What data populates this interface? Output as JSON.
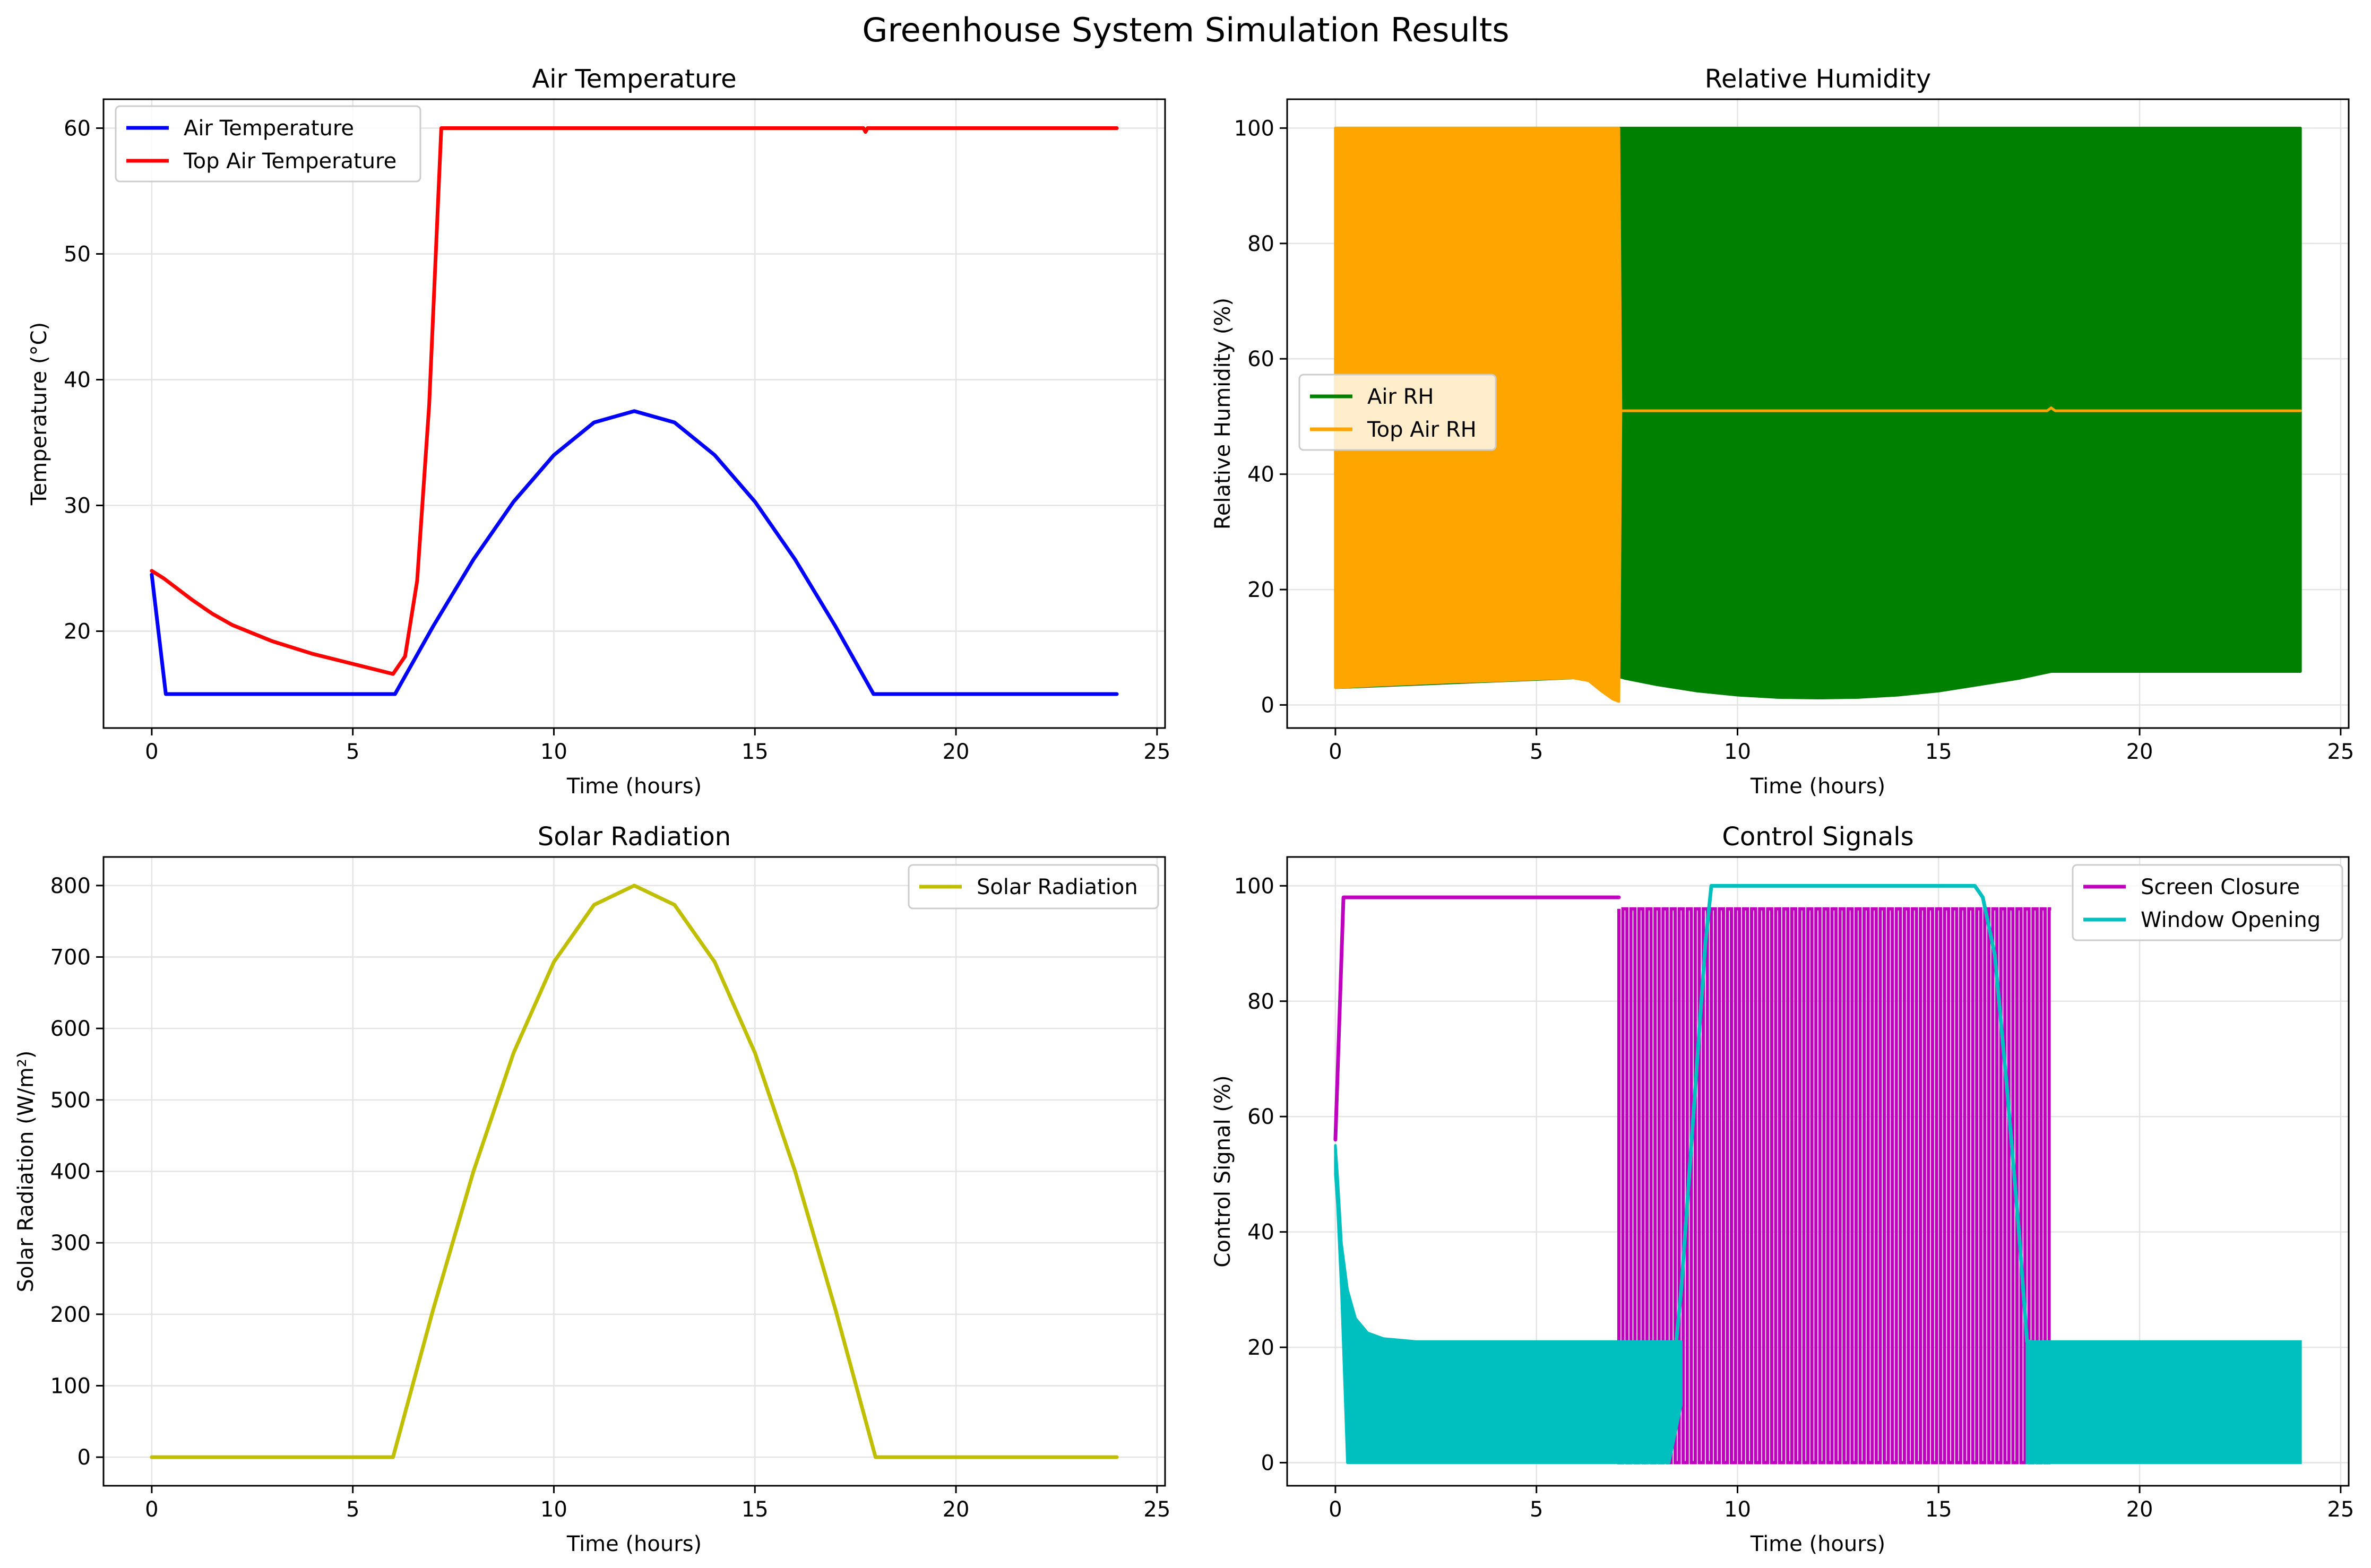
{
  "figure": {
    "title": "Greenhouse System Simulation Results"
  },
  "chart_data": [
    {
      "type": "line",
      "title": "Air Temperature",
      "xlabel": "Time (hours)",
      "ylabel": "Temperature (°C)",
      "xlim": [
        -1.2,
        25.2
      ],
      "ylim": [
        12.3,
        62.3
      ],
      "xticks": [
        0,
        5,
        10,
        15,
        20,
        25
      ],
      "yticks": [
        20,
        30,
        40,
        50,
        60
      ],
      "grid": true,
      "legend": "upper left",
      "series": [
        {
          "name": "Air Temperature",
          "color": "#0000ff",
          "x": [
            0,
            0.35,
            1,
            2,
            3,
            4,
            5,
            6.05,
            7,
            8,
            9,
            10,
            11,
            12,
            13,
            14,
            15,
            16,
            17,
            17.95,
            18.5,
            20,
            22,
            24
          ],
          "y": [
            24.5,
            15,
            15,
            15,
            15,
            15,
            15,
            15,
            20.4,
            25.7,
            30.3,
            34,
            36.6,
            37.5,
            36.6,
            34,
            30.3,
            25.7,
            20.4,
            15,
            15,
            15,
            15,
            15
          ]
        },
        {
          "name": "Top Air Temperature",
          "color": "#ff0000",
          "x": [
            0,
            0.3,
            1,
            1.5,
            2,
            3,
            4,
            5,
            6,
            6.3,
            6.6,
            6.9,
            7.2,
            8,
            10,
            12,
            14,
            16,
            17.7,
            17.75,
            17.8,
            20,
            22,
            24
          ],
          "y": [
            24.8,
            24.2,
            22.5,
            21.4,
            20.5,
            19.2,
            18.2,
            17.4,
            16.6,
            18,
            24,
            38,
            60,
            60,
            60,
            60,
            60,
            60,
            60,
            59.7,
            60,
            60,
            60,
            60
          ]
        }
      ]
    },
    {
      "type": "area",
      "title": "Relative Humidity",
      "xlabel": "Time (hours)",
      "ylabel": "Relative Humidity (%)",
      "xlim": [
        -1.2,
        25.2
      ],
      "ylim": [
        -4,
        105
      ],
      "xticks": [
        0,
        5,
        10,
        15,
        20,
        25
      ],
      "yticks": [
        0,
        20,
        40,
        60,
        80,
        100
      ],
      "grid": true,
      "legend": "center left",
      "note": "both series oscillate rapidly between lower and upper envelopes, drawn as filled bands",
      "series": [
        {
          "name": "Air RH",
          "color": "#008000",
          "x": [
            0,
            0.05,
            7,
            7.2,
            8,
            9,
            10,
            11,
            12,
            13,
            14,
            15,
            16,
            17,
            17.8,
            18,
            20,
            22,
            24
          ],
          "lower": [
            3,
            3,
            5,
            4.6,
            3.5,
            2.4,
            1.7,
            1.3,
            1.2,
            1.3,
            1.7,
            2.4,
            3.5,
            4.6,
            5.8,
            5.8,
            5.8,
            5.8,
            5.8
          ],
          "upper": [
            100,
            100,
            100,
            100,
            100,
            100,
            100,
            100,
            100,
            100,
            100,
            100,
            100,
            100,
            100,
            100,
            100,
            100,
            100
          ]
        },
        {
          "name": "Top Air RH",
          "color": "#ffa500",
          "x": [
            0,
            1,
            2,
            3,
            4,
            5,
            5.9,
            6.3,
            6.6,
            6.9,
            7.05,
            7.1,
            7.3,
            10,
            15,
            17.7,
            17.8,
            17.9,
            20,
            24
          ],
          "lower": [
            3,
            3.4,
            3.7,
            4,
            4.2,
            4.5,
            4.7,
            4.2,
            2.5,
            1,
            0.6,
            51,
            51,
            51,
            51,
            51,
            51.5,
            51,
            51,
            51
          ],
          "upper": [
            100,
            100,
            100,
            100,
            100,
            100,
            100,
            100,
            100,
            100,
            100,
            51,
            51,
            51,
            51,
            51,
            51.5,
            51,
            51,
            51
          ]
        }
      ]
    },
    {
      "type": "line",
      "title": "Solar Radiation",
      "xlabel": "Time (hours)",
      "ylabel": "Solar Radiation (W/m²)",
      "xlim": [
        -1.2,
        25.2
      ],
      "ylim": [
        -40,
        840
      ],
      "xticks": [
        0,
        5,
        10,
        15,
        20,
        25
      ],
      "yticks": [
        0,
        100,
        200,
        300,
        400,
        500,
        600,
        700,
        800
      ],
      "grid": true,
      "legend": "upper right",
      "series": [
        {
          "name": "Solar Radiation",
          "color": "#bfbf00",
          "x": [
            0,
            2,
            4,
            6,
            7,
            8,
            9,
            10,
            11,
            12,
            13,
            14,
            15,
            16,
            17,
            18,
            20,
            22,
            24
          ],
          "y": [
            0,
            0,
            0,
            0,
            207,
            400,
            566,
            693,
            773,
            800,
            773,
            693,
            566,
            400,
            207,
            0,
            0,
            0,
            0
          ]
        }
      ]
    },
    {
      "type": "line",
      "title": "Control Signals",
      "xlabel": "Time (hours)",
      "ylabel": "Control Signal (%)",
      "xlim": [
        -1.2,
        25.2
      ],
      "ylim": [
        -4,
        105
      ],
      "xticks": [
        0,
        5,
        10,
        15,
        20,
        25
      ],
      "yticks": [
        0,
        20,
        40,
        60,
        80,
        100
      ],
      "grid": true,
      "legend": "upper right",
      "series": [
        {
          "name": "Screen Closure",
          "color": "#bf00bf",
          "x": [
            0,
            0.2,
            7.05
          ],
          "y": [
            56,
            98,
            98
          ],
          "oscillation": {
            "x_start": 7.05,
            "x_end": 17.8,
            "period": 0.2,
            "low": 0,
            "high": 96,
            "bounds_low": 21,
            "bounds_high": 96
          }
        },
        {
          "name": "Window Opening",
          "color": "#00bfbf",
          "band": {
            "x": [
              0,
              0.05,
              0.15,
              0.3,
              0.5,
              0.8,
              1.2,
              2,
              7,
              7.8,
              8.3,
              8.6
            ],
            "lower": [
              50,
              45,
              30,
              0,
              0,
              0,
              0,
              0,
              0,
              0,
              0,
              10
            ],
            "upper": [
              55,
              50,
              38,
              30,
              25,
              22.5,
              21.5,
              21,
              21,
              21,
              21,
              21
            ]
          },
          "x": [
            7.7,
            8,
            8.3,
            8.6,
            8.9,
            9.2,
            9.35,
            10,
            12,
            14,
            15.9,
            16.1,
            16.4,
            16.7,
            17,
            17.2,
            17.3
          ],
          "y": [
            0,
            1.5,
            8,
            30,
            60,
            90,
            100,
            100,
            100,
            100,
            100,
            98,
            88,
            65,
            40,
            21,
            21
          ],
          "band2": {
            "x": [
              17.2,
              24
            ],
            "lower": [
              0,
              0
            ],
            "upper": [
              21,
              21
            ]
          }
        }
      ]
    }
  ]
}
